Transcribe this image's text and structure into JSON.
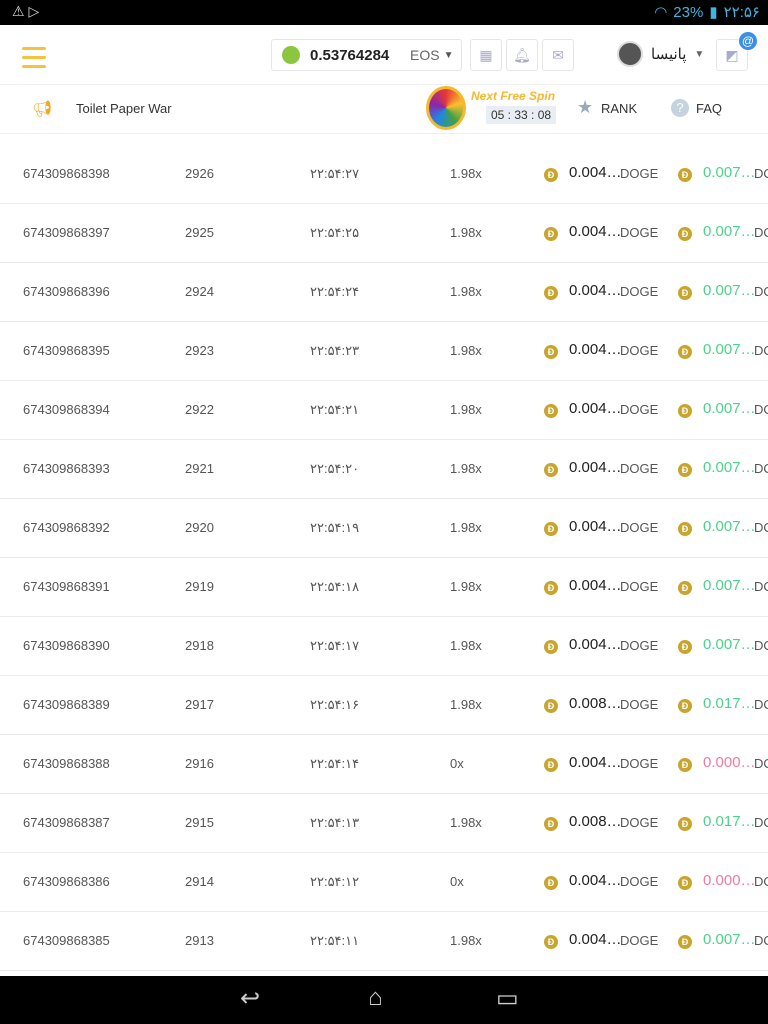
{
  "status": {
    "battery": "23%",
    "time": "۲۲:۵۶"
  },
  "header": {
    "balance": "0.53764284",
    "currency": "EOS",
    "username": "پانیسا"
  },
  "subnav": {
    "announcement": "Toilet Paper War",
    "spin_label": "Next Free Spin",
    "spin_timer": "05 : 33 : 08",
    "rank": "RANK",
    "faq": "FAQ"
  },
  "colors": {
    "accent": "#f5c33b",
    "win": "#4cd38a",
    "loss": "#f07c9a",
    "doge": "#c9a52e"
  },
  "rows": [
    {
      "id": "674309868398",
      "num": "2926",
      "time": "۲۲:۵۴:۲۷",
      "mult": "1.98x",
      "bet": "0.004…",
      "cur": "DOGE",
      "payout": "0.007…",
      "pcur": "DO",
      "win": true
    },
    {
      "id": "674309868397",
      "num": "2925",
      "time": "۲۲:۵۴:۲۵",
      "mult": "1.98x",
      "bet": "0.004…",
      "cur": "DOGE",
      "payout": "0.007…",
      "pcur": "DO",
      "win": true
    },
    {
      "id": "674309868396",
      "num": "2924",
      "time": "۲۲:۵۴:۲۴",
      "mult": "1.98x",
      "bet": "0.004…",
      "cur": "DOGE",
      "payout": "0.007…",
      "pcur": "DO",
      "win": true
    },
    {
      "id": "674309868395",
      "num": "2923",
      "time": "۲۲:۵۴:۲۳",
      "mult": "1.98x",
      "bet": "0.004…",
      "cur": "DOGE",
      "payout": "0.007…",
      "pcur": "DO",
      "win": true
    },
    {
      "id": "674309868394",
      "num": "2922",
      "time": "۲۲:۵۴:۲۱",
      "mult": "1.98x",
      "bet": "0.004…",
      "cur": "DOGE",
      "payout": "0.007…",
      "pcur": "DO",
      "win": true
    },
    {
      "id": "674309868393",
      "num": "2921",
      "time": "۲۲:۵۴:۲۰",
      "mult": "1.98x",
      "bet": "0.004…",
      "cur": "DOGE",
      "payout": "0.007…",
      "pcur": "DO",
      "win": true
    },
    {
      "id": "674309868392",
      "num": "2920",
      "time": "۲۲:۵۴:۱۹",
      "mult": "1.98x",
      "bet": "0.004…",
      "cur": "DOGE",
      "payout": "0.007…",
      "pcur": "DO",
      "win": true
    },
    {
      "id": "674309868391",
      "num": "2919",
      "time": "۲۲:۵۴:۱۸",
      "mult": "1.98x",
      "bet": "0.004…",
      "cur": "DOGE",
      "payout": "0.007…",
      "pcur": "DO",
      "win": true
    },
    {
      "id": "674309868390",
      "num": "2918",
      "time": "۲۲:۵۴:۱۷",
      "mult": "1.98x",
      "bet": "0.004…",
      "cur": "DOGE",
      "payout": "0.007…",
      "pcur": "DO",
      "win": true
    },
    {
      "id": "674309868389",
      "num": "2917",
      "time": "۲۲:۵۴:۱۶",
      "mult": "1.98x",
      "bet": "0.008…",
      "cur": "DOGE",
      "payout": "0.017…",
      "pcur": "DO",
      "win": true
    },
    {
      "id": "674309868388",
      "num": "2916",
      "time": "۲۲:۵۴:۱۴",
      "mult": "0x",
      "bet": "0.004…",
      "cur": "DOGE",
      "payout": "0.000…",
      "pcur": "DO",
      "win": false
    },
    {
      "id": "674309868387",
      "num": "2915",
      "time": "۲۲:۵۴:۱۳",
      "mult": "1.98x",
      "bet": "0.008…",
      "cur": "DOGE",
      "payout": "0.017…",
      "pcur": "DO",
      "win": true
    },
    {
      "id": "674309868386",
      "num": "2914",
      "time": "۲۲:۵۴:۱۲",
      "mult": "0x",
      "bet": "0.004…",
      "cur": "DOGE",
      "payout": "0.000…",
      "pcur": "DO",
      "win": false
    },
    {
      "id": "674309868385",
      "num": "2913",
      "time": "۲۲:۵۴:۱۱",
      "mult": "1.98x",
      "bet": "0.004…",
      "cur": "DOGE",
      "payout": "0.007…",
      "pcur": "DO",
      "win": true
    }
  ]
}
